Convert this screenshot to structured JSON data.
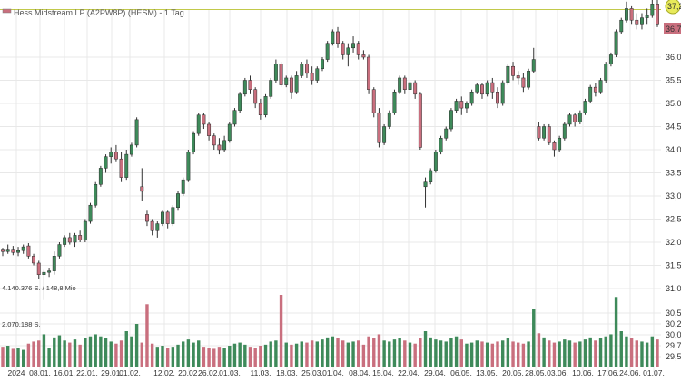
{
  "chart_data": {
    "type": "candlestick",
    "title": "Hess Midstream LP (A2PW8P) (HESM) - 1 Tag",
    "last_price_label": "36,7",
    "high_marker_label": "37,2",
    "volume_labels": [
      "4.140.376 S. / 148,8 Mio",
      "2.070.188 S."
    ],
    "y_price_ticks": [
      "36,00",
      "35,50",
      "35,00",
      "34,50",
      "34,00",
      "33,50",
      "33,00",
      "32,50",
      "32,00",
      "31,50",
      "31,00"
    ],
    "y_volume_ticks": [
      "30,50",
      "30,25",
      "30,00",
      "29,75",
      "29,50"
    ],
    "x_ticks": [
      "2024",
      "08.01.",
      "16.01.",
      "22.01.",
      "29.01.",
      "01.02.",
      "12.02.",
      "20.02.",
      "26.02.",
      "01.03.",
      "11.03.",
      "18.03.",
      "25.03.",
      "01.04.",
      "08.04.",
      "15.04.",
      "22.04.",
      "29.04.",
      "06.05.",
      "13.05.",
      "20.05.",
      "28.05.",
      "03.06.",
      "10.06.",
      "17.06.",
      "24.06.",
      "01.07."
    ],
    "ohlcv": [
      [
        31.85,
        31.88,
        31.7,
        31.8,
        200
      ],
      [
        31.8,
        31.95,
        31.75,
        31.85,
        210
      ],
      [
        31.85,
        31.92,
        31.72,
        31.78,
        180
      ],
      [
        31.78,
        31.9,
        31.7,
        31.82,
        190
      ],
      [
        31.82,
        31.95,
        31.75,
        31.9,
        170
      ],
      [
        31.92,
        31.98,
        31.65,
        31.7,
        230
      ],
      [
        31.7,
        31.75,
        31.5,
        31.55,
        250
      ],
      [
        31.55,
        31.6,
        31.2,
        31.3,
        260
      ],
      [
        31.3,
        31.4,
        30.75,
        31.35,
        320
      ],
      [
        31.35,
        31.45,
        31.25,
        31.38,
        190
      ],
      [
        31.38,
        31.8,
        31.3,
        31.7,
        290
      ],
      [
        31.7,
        32.0,
        31.65,
        31.95,
        310
      ],
      [
        31.95,
        32.15,
        31.9,
        32.1,
        260
      ],
      [
        32.1,
        32.2,
        31.95,
        32.0,
        240
      ],
      [
        32.0,
        32.2,
        31.9,
        32.15,
        270
      ],
      [
        32.15,
        32.25,
        32.0,
        32.05,
        220
      ],
      [
        32.05,
        32.5,
        32.0,
        32.45,
        280
      ],
      [
        32.45,
        32.85,
        32.4,
        32.8,
        300
      ],
      [
        32.8,
        33.3,
        32.75,
        33.25,
        320
      ],
      [
        33.25,
        33.65,
        33.2,
        33.6,
        300
      ],
      [
        33.6,
        33.9,
        33.5,
        33.85,
        280
      ],
      [
        33.85,
        34.05,
        33.7,
        33.95,
        250
      ],
      [
        33.95,
        34.1,
        33.75,
        33.8,
        230
      ],
      [
        33.8,
        33.95,
        33.3,
        33.4,
        260
      ],
      [
        33.4,
        34.0,
        33.35,
        33.9,
        350
      ],
      [
        33.9,
        34.15,
        33.85,
        34.1,
        300
      ],
      [
        34.1,
        34.7,
        34.05,
        34.65,
        420
      ],
      [
        33.2,
        33.6,
        32.9,
        33.1,
        240
      ],
      [
        32.6,
        32.7,
        32.35,
        32.45,
        610
      ],
      [
        32.45,
        32.5,
        32.15,
        32.25,
        230
      ],
      [
        32.25,
        32.45,
        32.1,
        32.4,
        200
      ],
      [
        32.4,
        32.7,
        32.35,
        32.65,
        210
      ],
      [
        32.65,
        32.7,
        32.3,
        32.4,
        190
      ],
      [
        32.4,
        32.8,
        32.35,
        32.75,
        200
      ],
      [
        32.75,
        33.1,
        32.7,
        33.05,
        220
      ],
      [
        33.05,
        33.4,
        33.0,
        33.35,
        250
      ],
      [
        33.35,
        34.0,
        33.3,
        33.95,
        270
      ],
      [
        33.95,
        34.4,
        33.9,
        34.35,
        240
      ],
      [
        34.35,
        34.8,
        34.3,
        34.75,
        260
      ],
      [
        34.75,
        34.8,
        34.45,
        34.55,
        200
      ],
      [
        34.55,
        34.6,
        34.2,
        34.3,
        190
      ],
      [
        34.3,
        34.35,
        34.0,
        34.1,
        180
      ],
      [
        34.1,
        34.25,
        33.9,
        34.0,
        200
      ],
      [
        34.0,
        34.3,
        33.95,
        34.2,
        190
      ],
      [
        34.2,
        34.6,
        34.15,
        34.55,
        210
      ],
      [
        34.55,
        34.9,
        34.5,
        34.85,
        230
      ],
      [
        34.85,
        35.25,
        34.8,
        35.2,
        240
      ],
      [
        35.2,
        35.55,
        35.15,
        35.5,
        220
      ],
      [
        35.5,
        35.6,
        35.2,
        35.3,
        200
      ],
      [
        35.3,
        35.35,
        34.9,
        35.0,
        190
      ],
      [
        35.0,
        35.1,
        34.65,
        34.75,
        210
      ],
      [
        34.75,
        35.2,
        34.7,
        35.15,
        220
      ],
      [
        35.15,
        35.55,
        35.1,
        35.5,
        250
      ],
      [
        35.5,
        35.95,
        35.45,
        35.85,
        260
      ],
      [
        35.85,
        35.9,
        35.35,
        35.4,
        700
      ],
      [
        35.4,
        35.6,
        35.35,
        35.55,
        240
      ],
      [
        35.55,
        35.6,
        35.1,
        35.25,
        220
      ],
      [
        35.25,
        35.7,
        35.2,
        35.6,
        230
      ],
      [
        35.6,
        35.9,
        35.55,
        35.85,
        250
      ],
      [
        35.85,
        35.95,
        35.55,
        35.65,
        240
      ],
      [
        35.65,
        35.8,
        35.4,
        35.5,
        260
      ],
      [
        35.5,
        35.8,
        35.45,
        35.75,
        250
      ],
      [
        35.75,
        36.0,
        35.7,
        35.95,
        270
      ],
      [
        35.95,
        36.35,
        35.9,
        36.3,
        290
      ],
      [
        36.3,
        36.6,
        36.25,
        36.55,
        300
      ],
      [
        36.55,
        36.65,
        36.2,
        36.3,
        280
      ],
      [
        36.3,
        36.35,
        35.95,
        36.05,
        260
      ],
      [
        36.05,
        36.3,
        35.8,
        36.2,
        240
      ],
      [
        36.2,
        36.45,
        36.1,
        36.3,
        250
      ],
      [
        36.3,
        36.35,
        35.95,
        36.05,
        260
      ],
      [
        36.05,
        36.15,
        35.95,
        36.0,
        220
      ],
      [
        36.0,
        36.05,
        35.2,
        35.3,
        300
      ],
      [
        35.3,
        35.35,
        34.7,
        34.8,
        280
      ],
      [
        34.8,
        34.9,
        34.05,
        34.15,
        320
      ],
      [
        34.15,
        34.55,
        34.1,
        34.5,
        260
      ],
      [
        34.5,
        34.85,
        34.45,
        34.8,
        250
      ],
      [
        34.8,
        35.3,
        34.75,
        35.25,
        270
      ],
      [
        35.25,
        35.6,
        35.2,
        35.55,
        280
      ],
      [
        35.55,
        35.6,
        35.2,
        35.3,
        260
      ],
      [
        35.3,
        35.5,
        35.0,
        35.45,
        240
      ],
      [
        35.45,
        35.5,
        35.1,
        35.2,
        230
      ],
      [
        35.2,
        35.25,
        34.0,
        34.05,
        280
      ],
      [
        33.2,
        33.4,
        32.75,
        33.3,
        350
      ],
      [
        33.3,
        33.6,
        33.25,
        33.55,
        290
      ],
      [
        33.55,
        34.0,
        33.5,
        33.95,
        270
      ],
      [
        33.95,
        34.3,
        33.9,
        34.25,
        260
      ],
      [
        34.25,
        34.5,
        34.2,
        34.45,
        250
      ],
      [
        34.45,
        34.9,
        34.4,
        34.85,
        280
      ],
      [
        34.85,
        35.1,
        34.8,
        35.05,
        300
      ],
      [
        35.05,
        35.15,
        34.75,
        34.9,
        270
      ],
      [
        34.9,
        35.05,
        34.8,
        35.0,
        230
      ],
      [
        35.0,
        35.3,
        34.95,
        35.25,
        240
      ],
      [
        35.25,
        35.45,
        35.2,
        35.4,
        260
      ],
      [
        35.4,
        35.45,
        35.1,
        35.2,
        250
      ],
      [
        35.2,
        35.5,
        35.15,
        35.45,
        240
      ],
      [
        35.45,
        35.55,
        35.1,
        35.25,
        230
      ],
      [
        35.25,
        35.35,
        34.9,
        35.0,
        250
      ],
      [
        35.0,
        35.5,
        34.95,
        35.45,
        260
      ],
      [
        35.45,
        35.85,
        35.4,
        35.8,
        280
      ],
      [
        35.8,
        35.9,
        35.5,
        35.6,
        250
      ],
      [
        35.6,
        35.7,
        35.4,
        35.55,
        240
      ],
      [
        35.55,
        35.65,
        35.25,
        35.35,
        230
      ],
      [
        35.35,
        35.75,
        35.3,
        35.7,
        250
      ],
      [
        35.7,
        36.2,
        35.65,
        35.95,
        560
      ],
      [
        34.5,
        34.6,
        34.2,
        34.25,
        330
      ],
      [
        34.25,
        34.55,
        34.2,
        34.5,
        290
      ],
      [
        34.5,
        34.55,
        34.1,
        34.15,
        260
      ],
      [
        34.15,
        34.2,
        33.85,
        34.0,
        240
      ],
      [
        34.0,
        34.3,
        33.95,
        34.25,
        250
      ],
      [
        34.25,
        34.6,
        34.2,
        34.55,
        270
      ],
      [
        34.55,
        34.8,
        34.5,
        34.75,
        260
      ],
      [
        34.75,
        34.8,
        34.5,
        34.6,
        240
      ],
      [
        34.6,
        34.85,
        34.55,
        34.8,
        250
      ],
      [
        34.8,
        35.1,
        34.75,
        35.05,
        270
      ],
      [
        35.05,
        35.4,
        35.0,
        35.35,
        290
      ],
      [
        35.35,
        35.45,
        35.15,
        35.25,
        260
      ],
      [
        35.25,
        35.55,
        35.2,
        35.5,
        280
      ],
      [
        35.5,
        35.9,
        35.45,
        35.85,
        300
      ],
      [
        35.85,
        36.1,
        35.8,
        36.05,
        320
      ],
      [
        36.05,
        36.6,
        36.0,
        36.55,
        680
      ],
      [
        36.55,
        36.85,
        36.5,
        36.8,
        350
      ],
      [
        36.8,
        37.2,
        36.75,
        37.05,
        300
      ],
      [
        37.05,
        37.1,
        36.7,
        36.8,
        280
      ],
      [
        36.8,
        36.95,
        36.6,
        36.7,
        260
      ],
      [
        36.7,
        36.95,
        36.6,
        36.85,
        250
      ],
      [
        36.85,
        37.05,
        36.7,
        36.9,
        240
      ],
      [
        36.9,
        37.25,
        36.85,
        37.15,
        300
      ],
      [
        37.15,
        37.25,
        36.65,
        36.7,
        270
      ]
    ]
  }
}
